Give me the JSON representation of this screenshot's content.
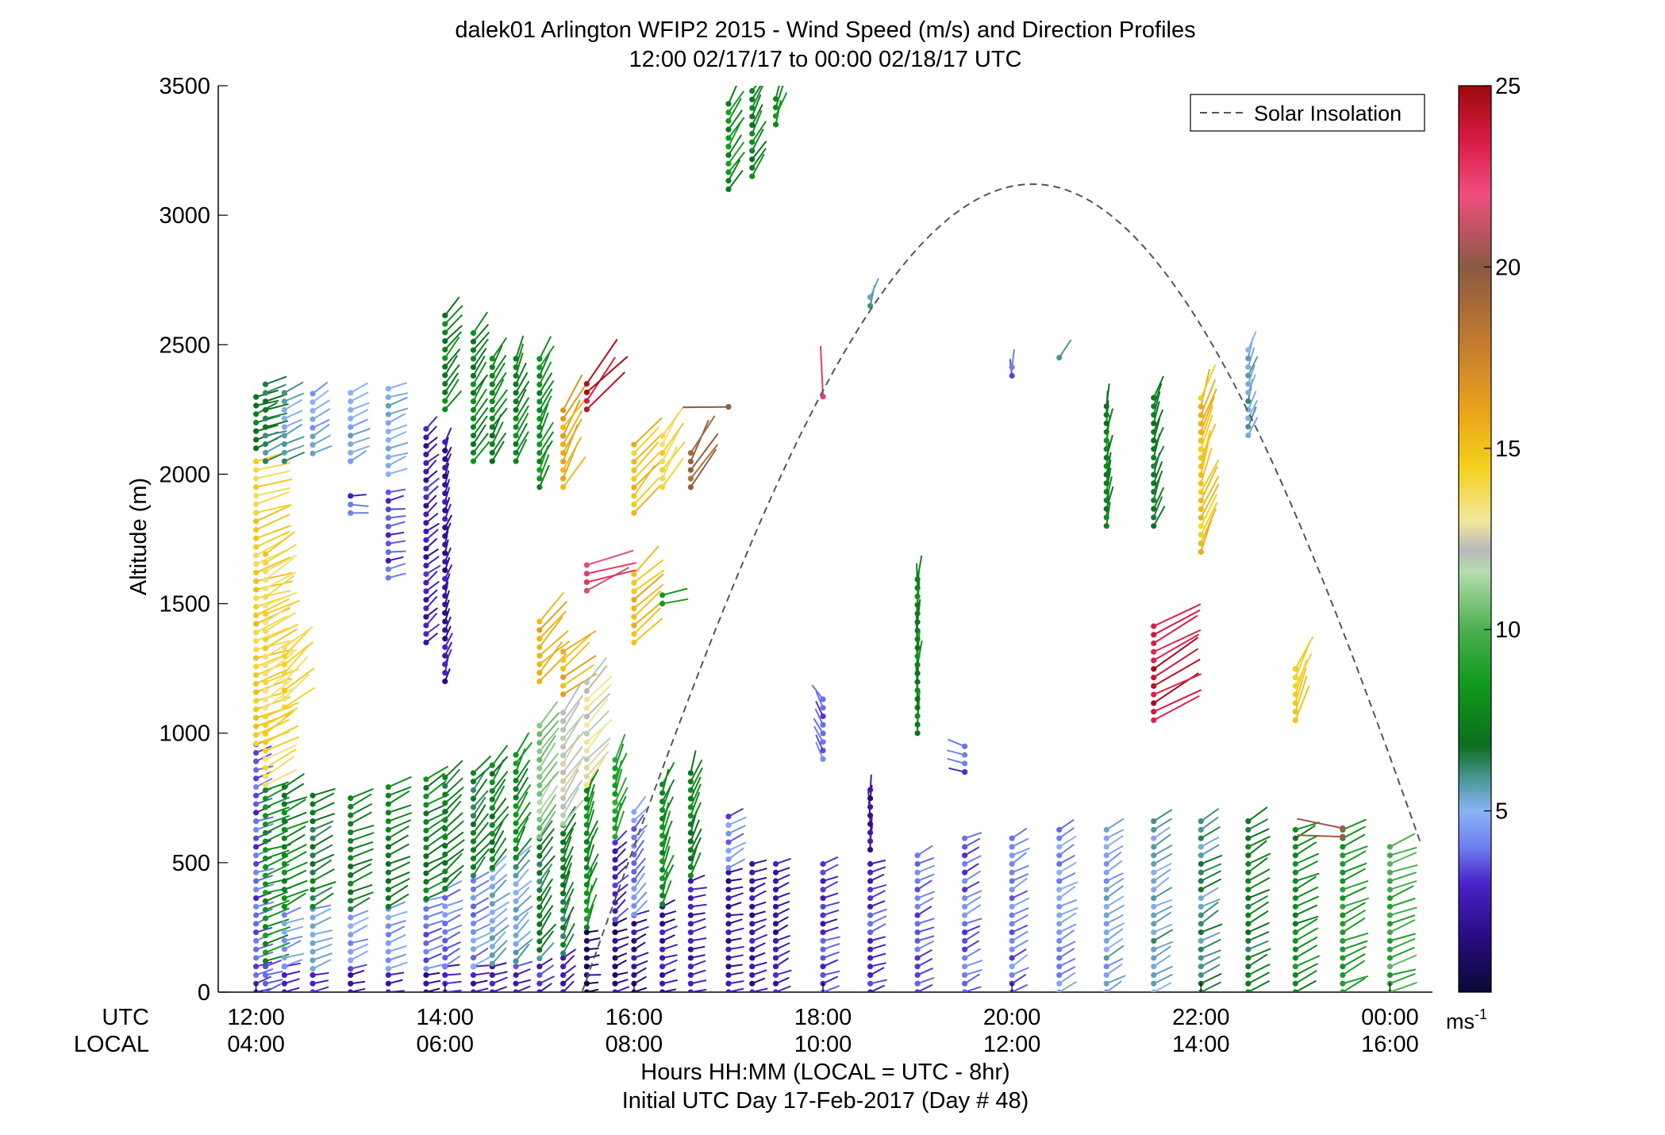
{
  "chart_data": {
    "type": "scatter",
    "title": "dalek01 Arlington WFIP2 2015 - Wind Speed (m/s) and Direction Profiles",
    "subtitle": "12:00 02/17/17 to 00:00 02/18/17  UTC",
    "xlabel_line1": "Hours HH:MM  (LOCAL = UTC - 8hr)",
    "xlabel_line2": "Initial UTC Day 17-Feb-2017 (Day # 48)",
    "ylabel": "Altitude (m)",
    "x_row_labels": [
      "UTC",
      "LOCAL"
    ],
    "xlim_hours_utc": [
      11.6,
      24.45
    ],
    "ylim": [
      0,
      3500
    ],
    "xticks_utc": [
      "12:00",
      "14:00",
      "16:00",
      "18:00",
      "20:00",
      "22:00",
      "00:00"
    ],
    "xticks_local": [
      "04:00",
      "06:00",
      "08:00",
      "10:00",
      "12:00",
      "14:00",
      "16:00"
    ],
    "xtick_hours_utc": [
      12,
      14,
      16,
      18,
      20,
      22,
      24
    ],
    "yticks": [
      "0",
      "500",
      "1000",
      "1500",
      "2000",
      "2500",
      "3000",
      "3500"
    ],
    "ytick_values": [
      0,
      500,
      1000,
      1500,
      2000,
      2500,
      3000,
      3500
    ],
    "legend": {
      "label": "Solar Insolation",
      "position": "top-right",
      "style": "dashed"
    },
    "colorbar": {
      "unit": "ms",
      "unit_exp": "-1",
      "ticks": [
        "5",
        "10",
        "15",
        "20",
        "25"
      ],
      "tick_values": [
        5,
        10,
        15,
        20,
        25
      ],
      "range": [
        0,
        25
      ],
      "stops": [
        {
          "v": 0,
          "c": "#0a0a35"
        },
        {
          "v": 1.5,
          "c": "#2a0a80"
        },
        {
          "v": 3,
          "c": "#4b22c8"
        },
        {
          "v": 4,
          "c": "#6d7ff0"
        },
        {
          "v": 5,
          "c": "#8ab3f5"
        },
        {
          "v": 5.8,
          "c": "#4e9aa0"
        },
        {
          "v": 6.8,
          "c": "#0c6e1e"
        },
        {
          "v": 8.5,
          "c": "#109a1c"
        },
        {
          "v": 10,
          "c": "#4caf50"
        },
        {
          "v": 11.6,
          "c": "#b5dcae"
        },
        {
          "v": 12.2,
          "c": "#b9b9b9"
        },
        {
          "v": 13,
          "c": "#f2e79c"
        },
        {
          "v": 14.5,
          "c": "#f4d01a"
        },
        {
          "v": 16,
          "c": "#e8a41a"
        },
        {
          "v": 18,
          "c": "#c07a30"
        },
        {
          "v": 20,
          "c": "#8a5a44"
        },
        {
          "v": 22,
          "c": "#f04e7e"
        },
        {
          "v": 23.5,
          "c": "#d81b45"
        },
        {
          "v": 25,
          "c": "#9c0a0a"
        }
      ]
    },
    "solar_insolation": {
      "description_units": "altitude-axis units",
      "start_hour_utc": 15.45,
      "end_hour_utc": 24.33,
      "peak_hour_utc": 20.22,
      "peak_altitude": 3120,
      "points": [
        [
          15.45,
          0
        ],
        [
          16.0,
          700
        ],
        [
          17.0,
          1760
        ],
        [
          18.0,
          2470
        ],
        [
          19.0,
          2960
        ],
        [
          20.0,
          3110
        ],
        [
          20.22,
          3120
        ],
        [
          21.0,
          3020
        ],
        [
          22.0,
          2620
        ],
        [
          23.0,
          1930
        ],
        [
          24.0,
          980
        ],
        [
          24.33,
          570
        ]
      ]
    },
    "wind_profiles": {
      "note": "Each vane: dot at (time, altitude), line extends toward the direction the wind comes from; color = speed (m/s).",
      "columns": [
        {
          "t": 12.0,
          "segments": [
            [
              0,
              960,
              3.5,
              250
            ],
            [
              960,
              2050,
              14.5,
              250
            ],
            [
              2100,
              2320,
              7.5,
              250
            ]
          ]
        },
        {
          "t": 12.1,
          "segments": [
            [
              0,
              120,
              3.0,
              250
            ],
            [
              120,
              800,
              8.0,
              250
            ],
            [
              800,
              1700,
              14.0,
              240
            ],
            [
              2050,
              2350,
              6.5,
              250
            ]
          ]
        },
        {
          "t": 12.3,
          "segments": [
            [
              0,
              100,
              2.5,
              250
            ],
            [
              100,
              330,
              4.5,
              250
            ],
            [
              330,
              800,
              7.5,
              245
            ],
            [
              1100,
              1350,
              14.0,
              230
            ],
            [
              2050,
              2330,
              5.5,
              245
            ]
          ]
        },
        {
          "t": 12.6,
          "segments": [
            [
              0,
              90,
              2.5,
              260
            ],
            [
              90,
              330,
              4.8,
              250
            ],
            [
              330,
              780,
              7.0,
              245
            ],
            [
              2080,
              2330,
              5.0,
              240
            ]
          ]
        },
        {
          "t": 13.0,
          "segments": [
            [
              0,
              90,
              2.5,
              260
            ],
            [
              90,
              320,
              4.2,
              250
            ],
            [
              320,
              760,
              7.2,
              245
            ],
            [
              1850,
              1920,
              3.5,
              270
            ],
            [
              2050,
              2330,
              5.0,
              245
            ]
          ]
        },
        {
          "t": 13.4,
          "segments": [
            [
              0,
              90,
              2.5,
              260
            ],
            [
              90,
              330,
              4.5,
              250
            ],
            [
              330,
              800,
              7.5,
              245
            ],
            [
              1600,
              1950,
              3.2,
              260
            ],
            [
              2000,
              2330,
              4.8,
              250
            ]
          ]
        },
        {
          "t": 13.8,
          "segments": [
            [
              0,
              90,
              2.2,
              260
            ],
            [
              90,
              360,
              4.0,
              250
            ],
            [
              360,
              840,
              7.5,
              240
            ],
            [
              1350,
              2200,
              2.5,
              230
            ]
          ]
        },
        {
          "t": 14.0,
          "segments": [
            [
              0,
              100,
              2.5,
              260
            ],
            [
              100,
              400,
              4.2,
              245
            ],
            [
              400,
              860,
              7.2,
              225
            ],
            [
              1200,
              2150,
              2.2,
              200
            ],
            [
              2250,
              2620,
              7.5,
              220
            ]
          ]
        },
        {
          "t": 14.3,
          "segments": [
            [
              0,
              100,
              2.5,
              260
            ],
            [
              100,
              450,
              4.5,
              240
            ],
            [
              450,
              860,
              7.0,
              220
            ],
            [
              2050,
              2550,
              7.5,
              215
            ]
          ]
        },
        {
          "t": 14.5,
          "segments": [
            [
              0,
              110,
              2.8,
              255
            ],
            [
              110,
              480,
              5.0,
              230
            ],
            [
              480,
              880,
              7.5,
              215
            ],
            [
              2050,
              2450,
              7.5,
              210
            ]
          ]
        },
        {
          "t": 14.75,
          "segments": [
            [
              0,
              120,
              3.0,
              250
            ],
            [
              120,
              520,
              5.5,
              225
            ],
            [
              520,
              940,
              8.0,
              210
            ],
            [
              2050,
              2470,
              7.5,
              205
            ]
          ]
        },
        {
          "t": 15.0,
          "segments": [
            [
              0,
              130,
              3.0,
              240
            ],
            [
              130,
              600,
              6.5,
              215
            ],
            [
              600,
              1050,
              11.0,
              215
            ],
            [
              1200,
              1450,
              15.5,
              225
            ],
            [
              1950,
              2450,
              8.0,
              205
            ]
          ]
        },
        {
          "t": 15.25,
          "segments": [
            [
              0,
              150,
              2.0,
              230
            ],
            [
              150,
              650,
              7.0,
              205
            ],
            [
              650,
              1100,
              12.0,
              215
            ],
            [
              1150,
              1320,
              15.5,
              230
            ],
            [
              1950,
              2250,
              16.0,
              210
            ]
          ]
        },
        {
          "t": 15.5,
          "segments": [
            [
              0,
              250,
              1.0,
              260
            ],
            [
              250,
              800,
              8.0,
              200
            ],
            [
              800,
              1200,
              12.5,
              220
            ],
            [
              1550,
              1650,
              22.0,
              250
            ],
            [
              2250,
              2360,
              24.0,
              220
            ]
          ]
        },
        {
          "t": 15.8,
          "segments": [
            [
              0,
              280,
              1.5,
              250
            ],
            [
              280,
              600,
              3.0,
              230
            ],
            [
              600,
              920,
              9.0,
              200
            ]
          ]
        },
        {
          "t": 16.0,
          "segments": [
            [
              0,
              300,
              2.0,
              245
            ],
            [
              300,
              700,
              4.0,
              220
            ],
            [
              1350,
              1620,
              15.5,
              230
            ],
            [
              1850,
              2120,
              15.0,
              220
            ]
          ]
        },
        {
          "t": 16.3,
          "segments": [
            [
              0,
              340,
              2.2,
              250
            ],
            [
              340,
              820,
              8.0,
              200
            ],
            [
              1500,
              1550,
              8.0,
              260
            ],
            [
              1950,
              2150,
              14.0,
              210
            ]
          ]
        },
        {
          "t": 16.6,
          "segments": [
            [
              0,
              450,
              2.5,
              255
            ],
            [
              450,
              860,
              7.5,
              200
            ],
            [
              1950,
              2100,
              19.0,
              210
            ]
          ]
        },
        {
          "t": 17.0,
          "segments": [
            [
              0,
              480,
              2.0,
              260
            ],
            [
              480,
              700,
              4.0,
              240
            ],
            [
              2260,
              2280,
              20.0,
              90
            ],
            [
              3100,
              3450,
              8.0,
              210
            ]
          ]
        },
        {
          "t": 17.25,
          "segments": [
            [
              0,
              500,
              2.2,
              250
            ],
            [
              3150,
              3480,
              7.5,
              210
            ]
          ]
        },
        {
          "t": 17.5,
          "segments": [
            [
              0,
              500,
              2.5,
              245
            ],
            [
              3350,
              3480,
              8.0,
              200
            ]
          ]
        },
        {
          "t": 18.0,
          "segments": [
            [
              0,
              510,
              3.0,
              250
            ],
            [
              900,
              1150,
              3.5,
              150
            ],
            [
              2300,
              2320,
              23.0,
              170
            ]
          ]
        },
        {
          "t": 18.5,
          "segments": [
            [
              0,
              520,
              3.2,
              250
            ],
            [
              550,
              800,
              2.0,
              180
            ],
            [
              2650,
              2700,
              6.0,
              200
            ]
          ]
        },
        {
          "t": 19.0,
          "segments": [
            [
              0,
              560,
              3.5,
              245
            ],
            [
              1000,
              1620,
              7.5,
              185
            ]
          ]
        },
        {
          "t": 19.5,
          "segments": [
            [
              0,
              600,
              3.8,
              245
            ],
            [
              850,
              950,
              3.5,
              110
            ]
          ]
        },
        {
          "t": 20.0,
          "segments": [
            [
              0,
              620,
              4.0,
              240
            ],
            [
              2380,
              2420,
              3.5,
              180
            ]
          ]
        },
        {
          "t": 20.5,
          "segments": [
            [
              0,
              640,
              4.5,
              240
            ],
            [
              2450,
              2480,
              5.8,
              210
            ]
          ]
        },
        {
          "t": 21.0,
          "segments": [
            [
              0,
              650,
              5.0,
              240
            ],
            [
              1800,
              2280,
              7.5,
              190
            ]
          ]
        },
        {
          "t": 21.5,
          "segments": [
            [
              0,
              660,
              5.5,
              240
            ],
            [
              1050,
              1420,
              24.0,
              240
            ],
            [
              1800,
              2320,
              7.0,
              200
            ]
          ]
        },
        {
          "t": 22.0,
          "segments": [
            [
              0,
              660,
              6.0,
              240
            ],
            [
              1700,
              2300,
              15.0,
              200
            ]
          ]
        },
        {
          "t": 22.5,
          "segments": [
            [
              0,
              670,
              7.0,
              240
            ],
            [
              2150,
              2480,
              5.5,
              200
            ]
          ]
        },
        {
          "t": 23.0,
          "segments": [
            [
              0,
              640,
              8.0,
              245
            ],
            [
              1050,
              1250,
              14.5,
              200
            ]
          ]
        },
        {
          "t": 23.5,
          "segments": [
            [
              0,
              640,
              9.0,
              245
            ],
            [
              600,
              640,
              20.0,
              100
            ]
          ]
        },
        {
          "t": 24.0,
          "segments": [
            [
              0,
              570,
              9.5,
              250
            ]
          ]
        }
      ]
    }
  }
}
